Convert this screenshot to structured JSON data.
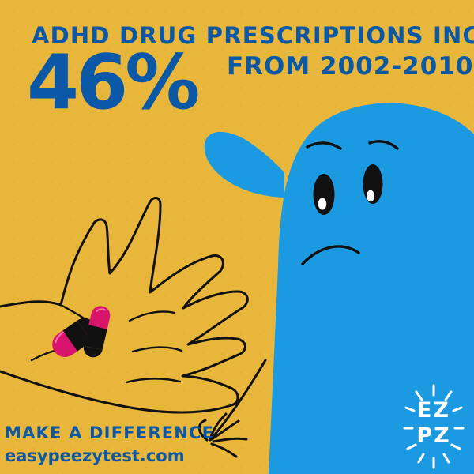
{
  "headline": {
    "top": "ADHD DRUG PRESCRIPTIONS INCREASED",
    "percent": "46%",
    "range": "FROM 2002-2010"
  },
  "footer": {
    "cta": "MAKE A DIFFERENCE",
    "site": "easypeezytest.com"
  },
  "logo": {
    "line1": "EZ",
    "line2": "PZ"
  },
  "colors": {
    "background": "#e8b63a",
    "text": "#0a58a6",
    "character": "#1b9ae2",
    "pill_magenta": "#d8146c",
    "ink": "#0f1a2e",
    "white": "#ffffff"
  },
  "icons": {
    "character": "blue-character-icon",
    "hand": "hand-icon",
    "pills": "pill-icon",
    "logo": "ezpz-logo-icon"
  }
}
